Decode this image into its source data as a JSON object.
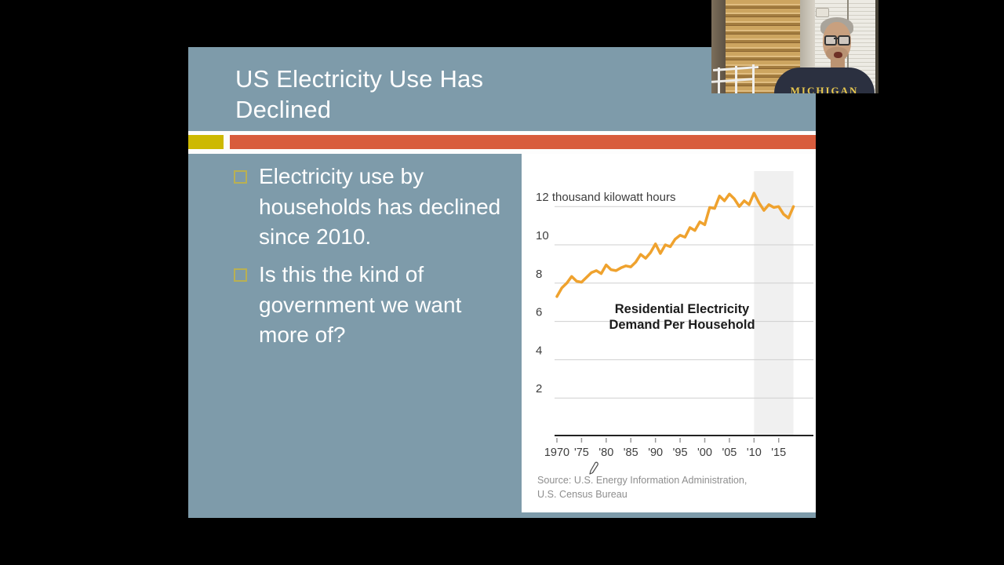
{
  "window": {
    "background": "#000000"
  },
  "webcam": {
    "person_shirt_text": "MICHIGAN"
  },
  "slide": {
    "background_color": "#7E9BAA",
    "accent_yellow": "#CDB902",
    "accent_orange": "#D85C3D",
    "title": "US Electricity Use Has Declined",
    "bullets": [
      {
        "text": "Electricity use by households has declined since 2010."
      },
      {
        "text": "Is this the kind of government we want more of?"
      }
    ]
  },
  "chart_data": {
    "type": "line",
    "title": "Residential Electricity Demand Per Household",
    "unit_label": "thousand kilowatt hours",
    "unit_tick": 12,
    "x_start": 1970,
    "x_end": 2018,
    "x": [
      1970,
      1971,
      1972,
      1973,
      1974,
      1975,
      1976,
      1977,
      1978,
      1979,
      1980,
      1981,
      1982,
      1983,
      1984,
      1985,
      1986,
      1987,
      1988,
      1989,
      1990,
      1991,
      1992,
      1993,
      1994,
      1995,
      1996,
      1997,
      1998,
      1999,
      2000,
      2001,
      2002,
      2003,
      2004,
      2005,
      2006,
      2007,
      2008,
      2009,
      2010,
      2011,
      2012,
      2013,
      2014,
      2015,
      2016,
      2017,
      2018
    ],
    "values": [
      7.3,
      7.75,
      8.0,
      8.35,
      8.1,
      8.05,
      8.3,
      8.55,
      8.65,
      8.5,
      8.95,
      8.7,
      8.65,
      8.8,
      8.9,
      8.85,
      9.1,
      9.5,
      9.3,
      9.6,
      10.05,
      9.55,
      10.0,
      9.9,
      10.3,
      10.5,
      10.4,
      10.9,
      10.75,
      11.2,
      11.05,
      11.95,
      11.9,
      12.55,
      12.3,
      12.65,
      12.4,
      12.0,
      12.3,
      12.1,
      12.7,
      12.2,
      11.8,
      12.1,
      11.95,
      12.0,
      11.6,
      11.4,
      12.0
    ],
    "ylim": [
      0,
      13
    ],
    "yticks": [
      2,
      4,
      6,
      8,
      10,
      12
    ],
    "xticks": [
      {
        "year": 1970,
        "label": "1970"
      },
      {
        "year": 1975,
        "label": "'75"
      },
      {
        "year": 1980,
        "label": "'80"
      },
      {
        "year": 1985,
        "label": "'85"
      },
      {
        "year": 1990,
        "label": "'90"
      },
      {
        "year": 1995,
        "label": "'95"
      },
      {
        "year": 2000,
        "label": "'00"
      },
      {
        "year": 2005,
        "label": "'05"
      },
      {
        "year": 2010,
        "label": "'10"
      },
      {
        "year": 2015,
        "label": "'15"
      }
    ],
    "highlight_band": {
      "from_year": 2010,
      "to_year": 2018,
      "color": "#F0F0F0"
    },
    "line_color": "#EFA22E",
    "grid": "horizontal",
    "legend": "none",
    "source_line1": "Source: U.S. Energy Information Administration,",
    "source_line2": "U.S. Census Bureau"
  }
}
